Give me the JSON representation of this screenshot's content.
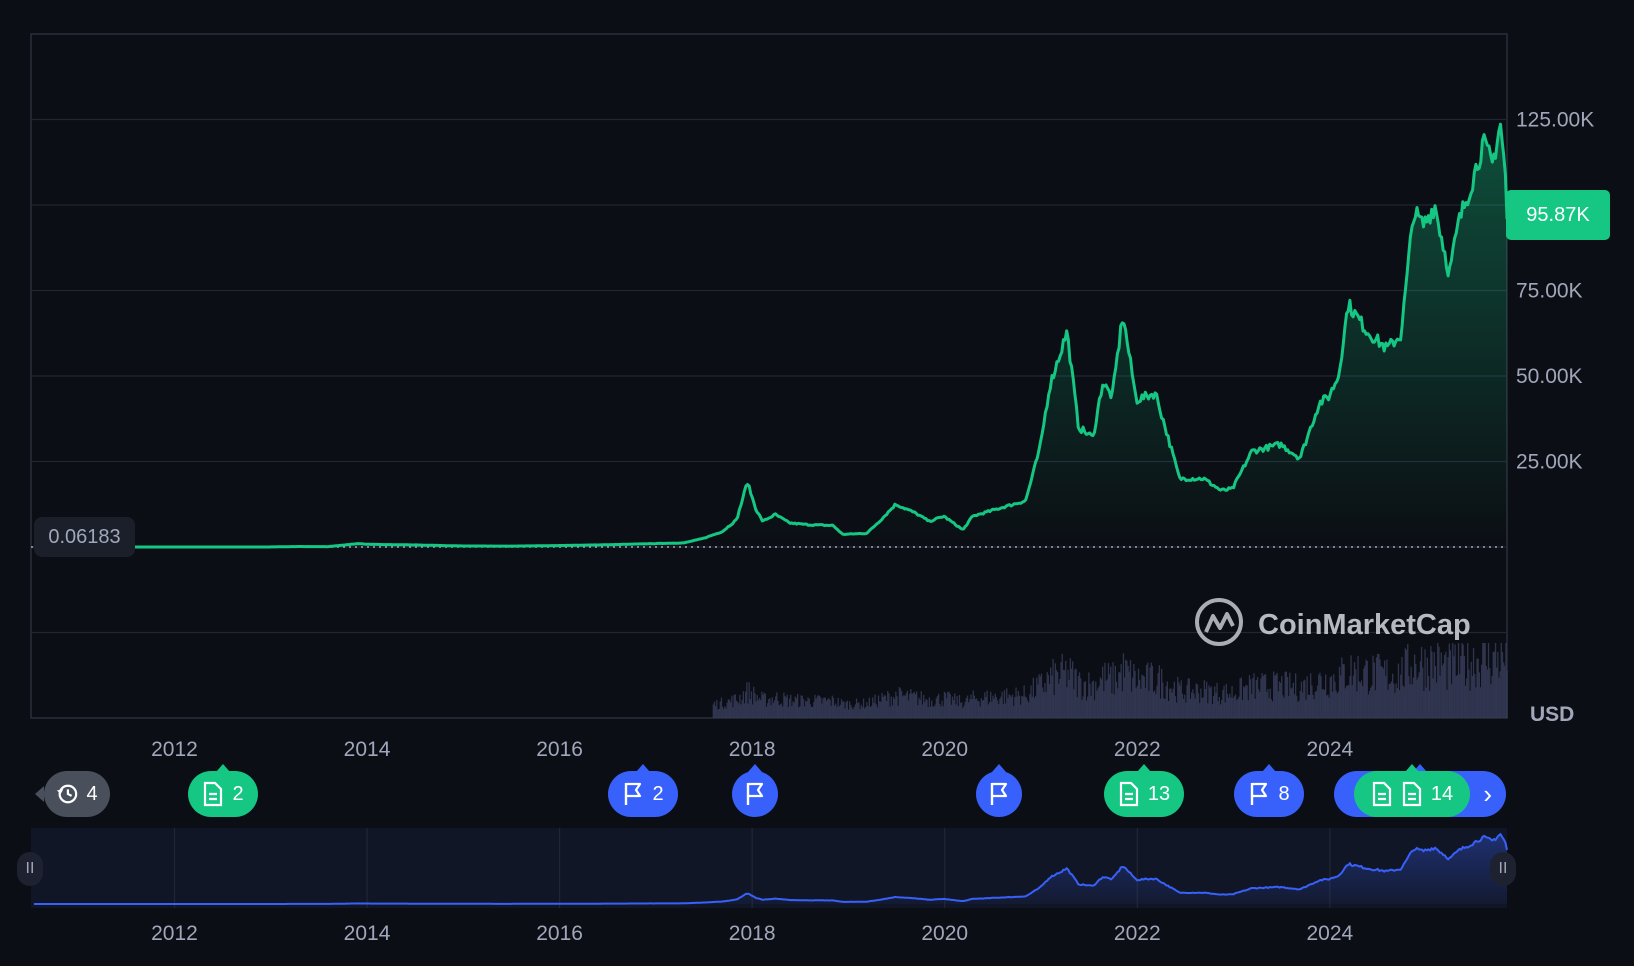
{
  "chart_data": {
    "type": "area",
    "title": "",
    "xlabel": "",
    "ylabel": "",
    "currency": "USD",
    "x_tick_labels": [
      "2012",
      "2014",
      "2016",
      "2018",
      "2020",
      "2022",
      "2024"
    ],
    "y_tick_labels": [
      "25.00K",
      "50.00K",
      "75.00K",
      "125.00K"
    ],
    "y_ticks": [
      25000,
      50000,
      75000,
      125000
    ],
    "ylim": [
      -50000,
      150000
    ],
    "xlim": [
      2010.52,
      2025.85
    ],
    "current_price_label": "95.87K",
    "current_price": 95870,
    "start_price_label": "0.06183",
    "start_price": 0.06183,
    "series": [
      {
        "values": [
          [
            2010.55,
            0.06
          ],
          [
            2011.0,
            0.3
          ],
          [
            2011.45,
            15
          ],
          [
            2012.0,
            5
          ],
          [
            2012.5,
            7
          ],
          [
            2013.0,
            13
          ],
          [
            2013.3,
            140
          ],
          [
            2013.6,
            100
          ],
          [
            2013.92,
            1000
          ],
          [
            2014.0,
            800
          ],
          [
            2014.5,
            600
          ],
          [
            2015.0,
            300
          ],
          [
            2015.5,
            250
          ],
          [
            2016.0,
            430
          ],
          [
            2016.5,
            650
          ],
          [
            2017.0,
            1000
          ],
          [
            2017.3,
            1200
          ],
          [
            2017.5,
            2500
          ],
          [
            2017.7,
            4500
          ],
          [
            2017.85,
            8000
          ],
          [
            2017.96,
            19000
          ],
          [
            2018.05,
            11000
          ],
          [
            2018.12,
            7500
          ],
          [
            2018.25,
            9500
          ],
          [
            2018.4,
            7000
          ],
          [
            2018.6,
            6500
          ],
          [
            2018.85,
            6300
          ],
          [
            2018.95,
            3700
          ],
          [
            2019.2,
            4000
          ],
          [
            2019.35,
            8000
          ],
          [
            2019.5,
            12500
          ],
          [
            2019.7,
            10000
          ],
          [
            2019.85,
            7500
          ],
          [
            2020.0,
            9000
          ],
          [
            2020.2,
            5000
          ],
          [
            2020.3,
            9000
          ],
          [
            2020.6,
            11500
          ],
          [
            2020.85,
            13500
          ],
          [
            2021.0,
            29000
          ],
          [
            2021.1,
            47000
          ],
          [
            2021.28,
            63000
          ],
          [
            2021.4,
            35000
          ],
          [
            2021.55,
            32000
          ],
          [
            2021.65,
            48000
          ],
          [
            2021.75,
            44000
          ],
          [
            2021.86,
            68000
          ],
          [
            2022.0,
            43000
          ],
          [
            2022.2,
            45000
          ],
          [
            2022.35,
            30000
          ],
          [
            2022.45,
            20000
          ],
          [
            2022.7,
            20000
          ],
          [
            2022.88,
            16500
          ],
          [
            2023.0,
            17000
          ],
          [
            2023.2,
            28000
          ],
          [
            2023.5,
            30000
          ],
          [
            2023.7,
            26000
          ],
          [
            2023.9,
            42000
          ],
          [
            2024.0,
            44000
          ],
          [
            2024.1,
            50000
          ],
          [
            2024.2,
            71000
          ],
          [
            2024.4,
            63000
          ],
          [
            2024.6,
            58000
          ],
          [
            2024.75,
            62000
          ],
          [
            2024.88,
            98000
          ],
          [
            2024.98,
            94000
          ],
          [
            2025.1,
            100000
          ],
          [
            2025.25,
            80000
          ],
          [
            2025.35,
            95000
          ],
          [
            2025.5,
            108000
          ],
          [
            2025.6,
            118000
          ],
          [
            2025.7,
            112000
          ],
          [
            2025.78,
            124000
          ],
          [
            2025.83,
            110000
          ],
          [
            2025.85,
            95870
          ]
        ]
      }
    ]
  },
  "watermark": {
    "brand": "CoinMarketCap"
  },
  "markers": [
    {
      "id": "history",
      "label": "4",
      "icon": "history-icon",
      "color": "#4a4f5c"
    },
    {
      "id": "news-2012",
      "label": "2",
      "icon": "document-icon",
      "color": "#16c784"
    },
    {
      "id": "flag-2017",
      "label": "2",
      "icon": "flag-icon",
      "color": "#3861fb"
    },
    {
      "id": "flag-2018",
      "label": "",
      "icon": "flag-icon",
      "color": "#3861fb"
    },
    {
      "id": "flag-2020",
      "label": "",
      "icon": "flag-icon",
      "color": "#3861fb"
    },
    {
      "id": "news-2022",
      "label": "13",
      "icon": "document-icon",
      "color": "#16c784"
    },
    {
      "id": "flag-2023",
      "label": "8",
      "icon": "flag-icon",
      "color": "#3861fb"
    },
    {
      "id": "news-2025",
      "label": "14",
      "icon": "document-icon",
      "color": "#16c784"
    }
  ],
  "navigator": {
    "x_tick_labels": [
      "2012",
      "2014",
      "2016",
      "2018",
      "2020",
      "2022",
      "2024"
    ],
    "handle_glyph": "II"
  },
  "colors": {
    "up": "#16c784",
    "event_blue": "#3861fb",
    "navigator_line": "#3861fb",
    "background": "#0b0e14"
  }
}
